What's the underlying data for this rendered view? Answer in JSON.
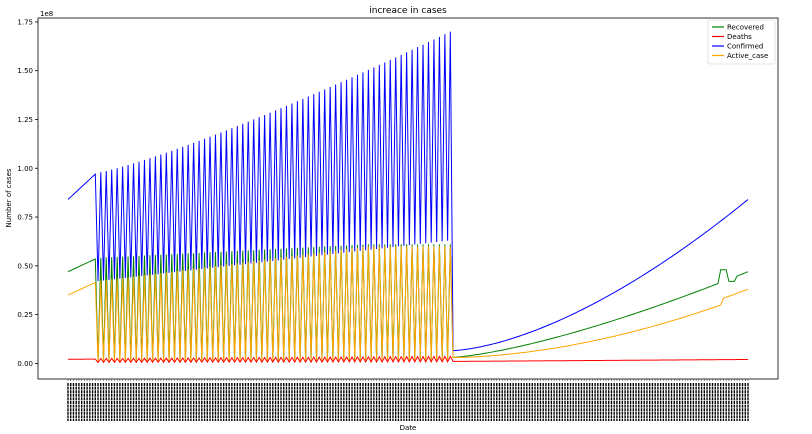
{
  "chart_data": {
    "type": "line",
    "title": "increace in cases",
    "xlabel": "Date",
    "ylabel": "Number of cases",
    "scale_label": "1e8",
    "ylim": [
      -0.08,
      1.77
    ],
    "y_ticks": [
      "0.00",
      "0.25",
      "0.50",
      "0.75",
      "1.00",
      "1.25",
      "1.50",
      "1.75"
    ],
    "y_tick_values": [
      0,
      0.25,
      0.5,
      0.75,
      1.0,
      1.25,
      1.5,
      1.75
    ],
    "x_count": 250,
    "legend_position": "top-right",
    "grid": false,
    "colors": {
      "Recovered": "#008000",
      "Deaths": "#ff0000",
      "Confirmed": "#0000ff",
      "Active_case": "#ffa500"
    },
    "series": [
      {
        "name": "Recovered",
        "color": "#008000"
      },
      {
        "name": "Deaths",
        "color": "#ff0000"
      },
      {
        "name": "Confirmed",
        "color": "#0000ff"
      },
      {
        "name": "Active_case",
        "color": "#ffa500"
      }
    ],
    "segments": {
      "start": {
        "x_range": [
          0,
          10
        ],
        "Confirmed": [
          0.84,
          0.97
        ],
        "Recovered": [
          0.47,
          0.535
        ],
        "Active_case": [
          0.35,
          0.415
        ],
        "Deaths": [
          0.021,
          0.022
        ]
      },
      "oscillating": {
        "x_range": [
          10,
          140
        ],
        "Confirmed_high": [
          0.975,
          1.7
        ],
        "Confirmed_low": [
          0.42,
          0.63
        ],
        "Recovered_high": [
          0.54,
          0.61
        ],
        "Recovered_low": [
          0.01,
          0.02
        ],
        "Active_case_high": [
          0.42,
          0.6
        ],
        "Active_case_low": [
          0.01,
          0.015
        ],
        "Deaths_high": [
          0.025,
          0.036
        ],
        "Deaths_low": [
          0.005,
          0.008
        ]
      },
      "end": {
        "x_range": [
          140,
          249
        ],
        "Confirmed": [
          0.065,
          0.84
        ],
        "Recovered": [
          0.03,
          0.47
        ],
        "Recovered_peak": 0.48,
        "Active_case": [
          0.03,
          0.35
        ],
        "Deaths": [
          0.01,
          0.02
        ]
      }
    }
  }
}
